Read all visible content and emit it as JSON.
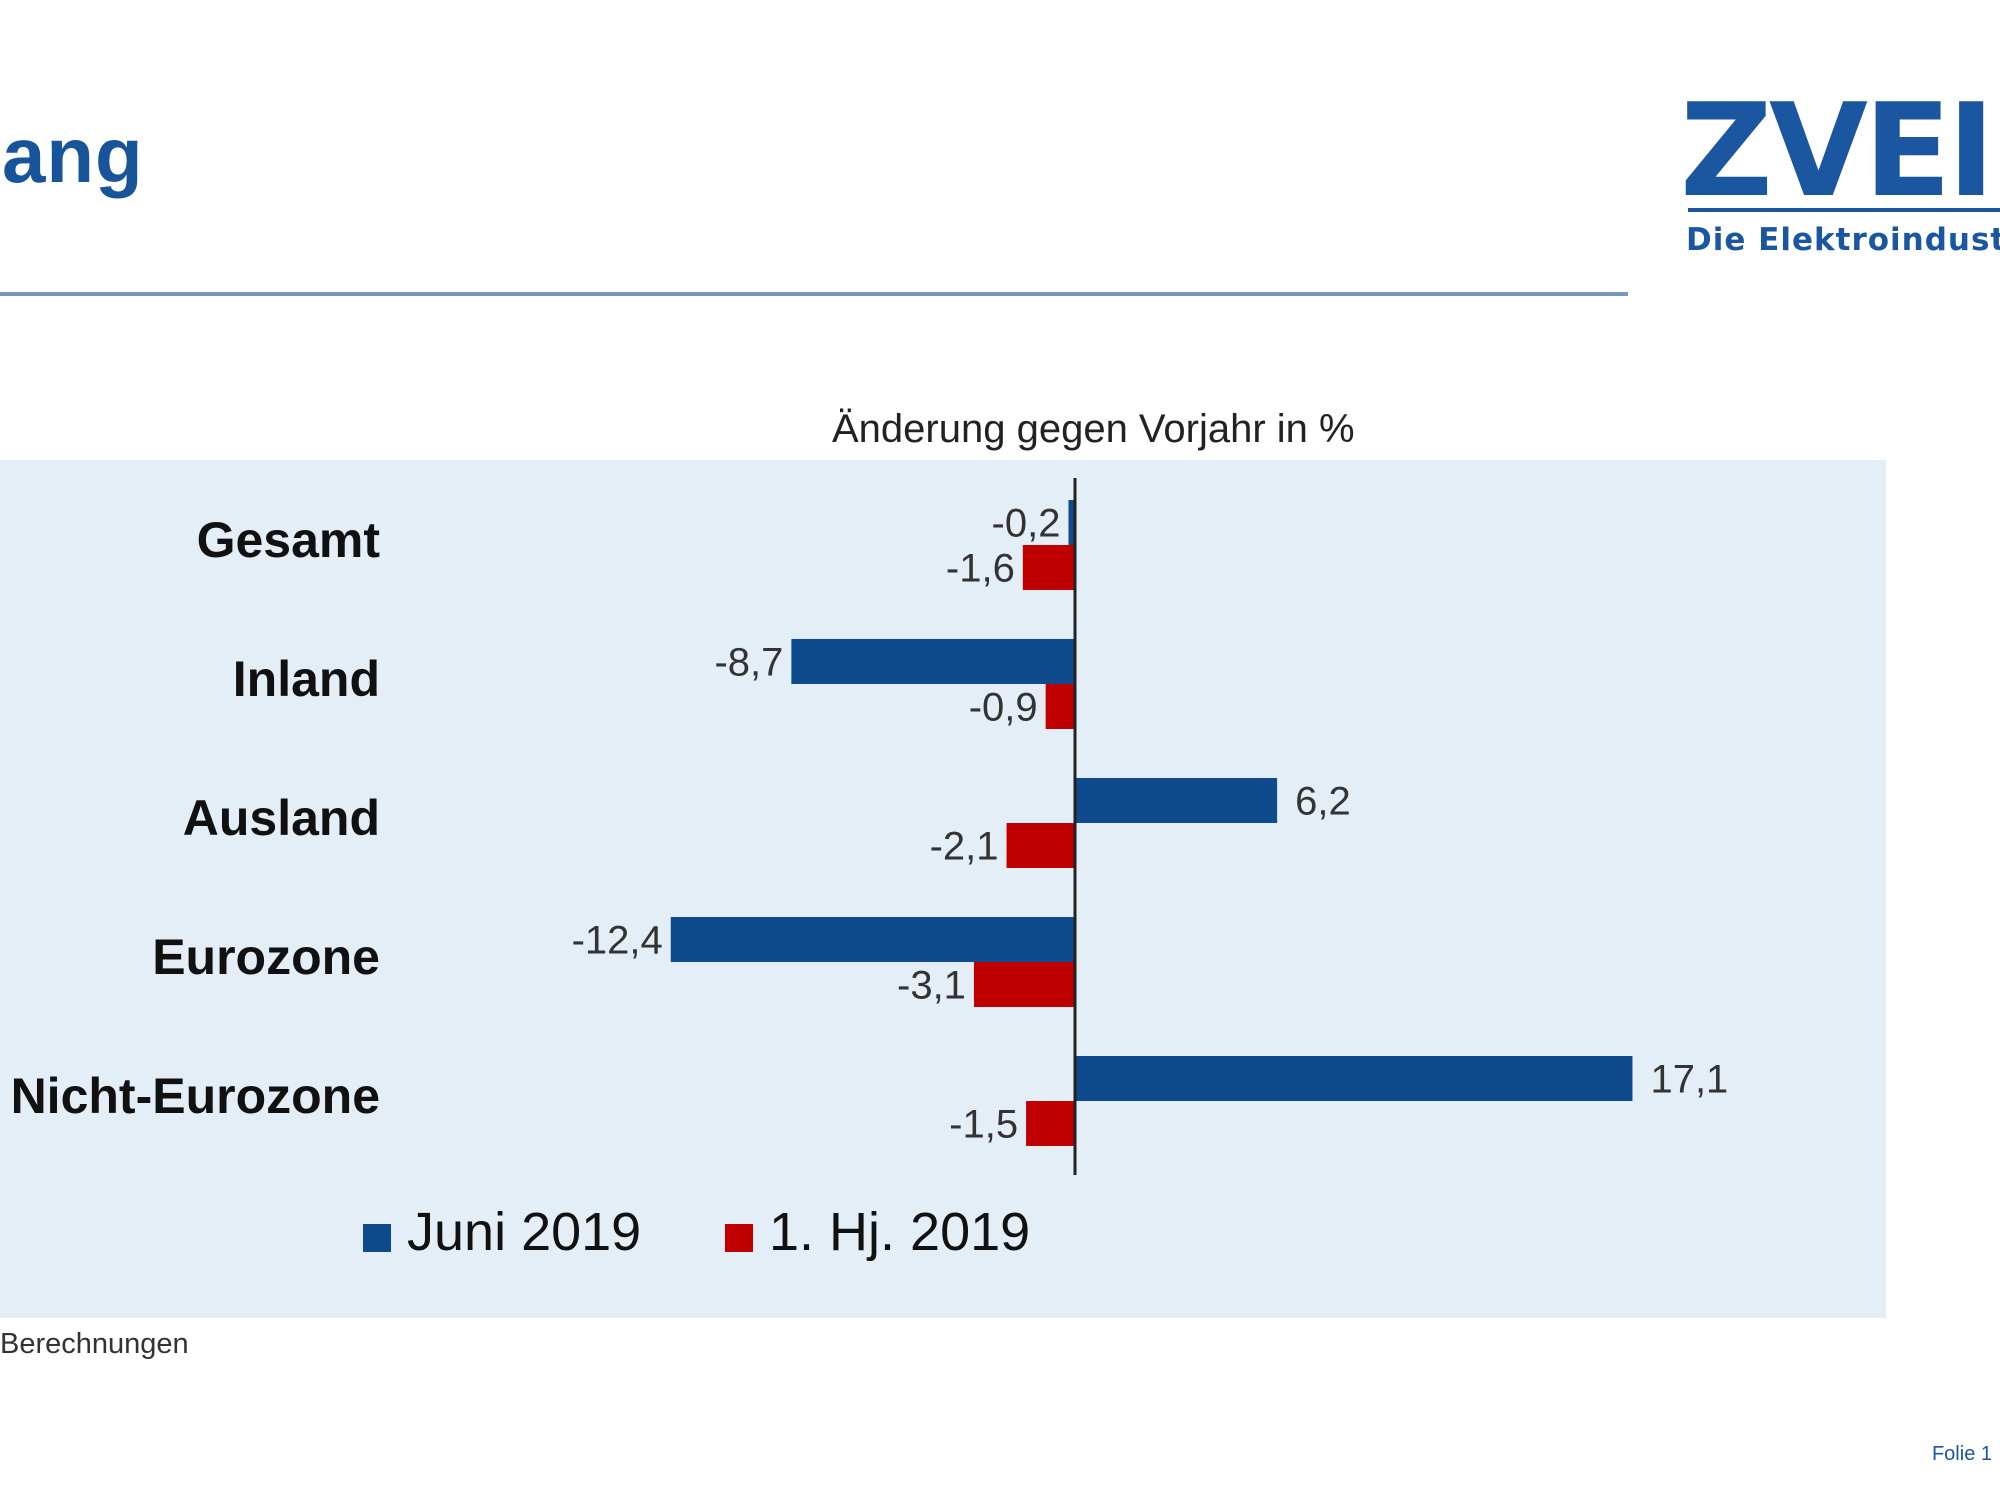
{
  "slide": {
    "title": "ang",
    "footnote": "Berechnungen",
    "slide_number": "Folie 1"
  },
  "logo": {
    "mark": "ZVEI",
    "tagline": "Die Elektroindustrie"
  },
  "colors": {
    "series_1": "#0f4a8c",
    "series_2": "#c00000",
    "panel_background": "#e4eef6",
    "title": "#17549a"
  },
  "chart_data": {
    "type": "bar",
    "orientation": "horizontal",
    "title": "Änderung gegen Vorjahr in %",
    "categories": [
      "Gesamt",
      "Inland",
      "Ausland",
      "Eurozone",
      "Nicht-Eurozone"
    ],
    "series": [
      {
        "name": "Juni 2019",
        "values": [
          -0.2,
          -8.7,
          6.2,
          -12.4,
          17.1
        ],
        "labels": [
          "-0,2",
          "-8,7",
          "6,2",
          "-12,4",
          "17,1"
        ]
      },
      {
        "name": "1. Hj. 2019",
        "values": [
          -1.6,
          -0.9,
          -2.1,
          -3.1,
          -1.5
        ],
        "labels": [
          "-1,6",
          "-0,9",
          "-2,1",
          "-3,1",
          "-1,5"
        ]
      }
    ],
    "xlim": [
      -33,
      25
    ],
    "grid": false,
    "legend_position": "bottom"
  }
}
